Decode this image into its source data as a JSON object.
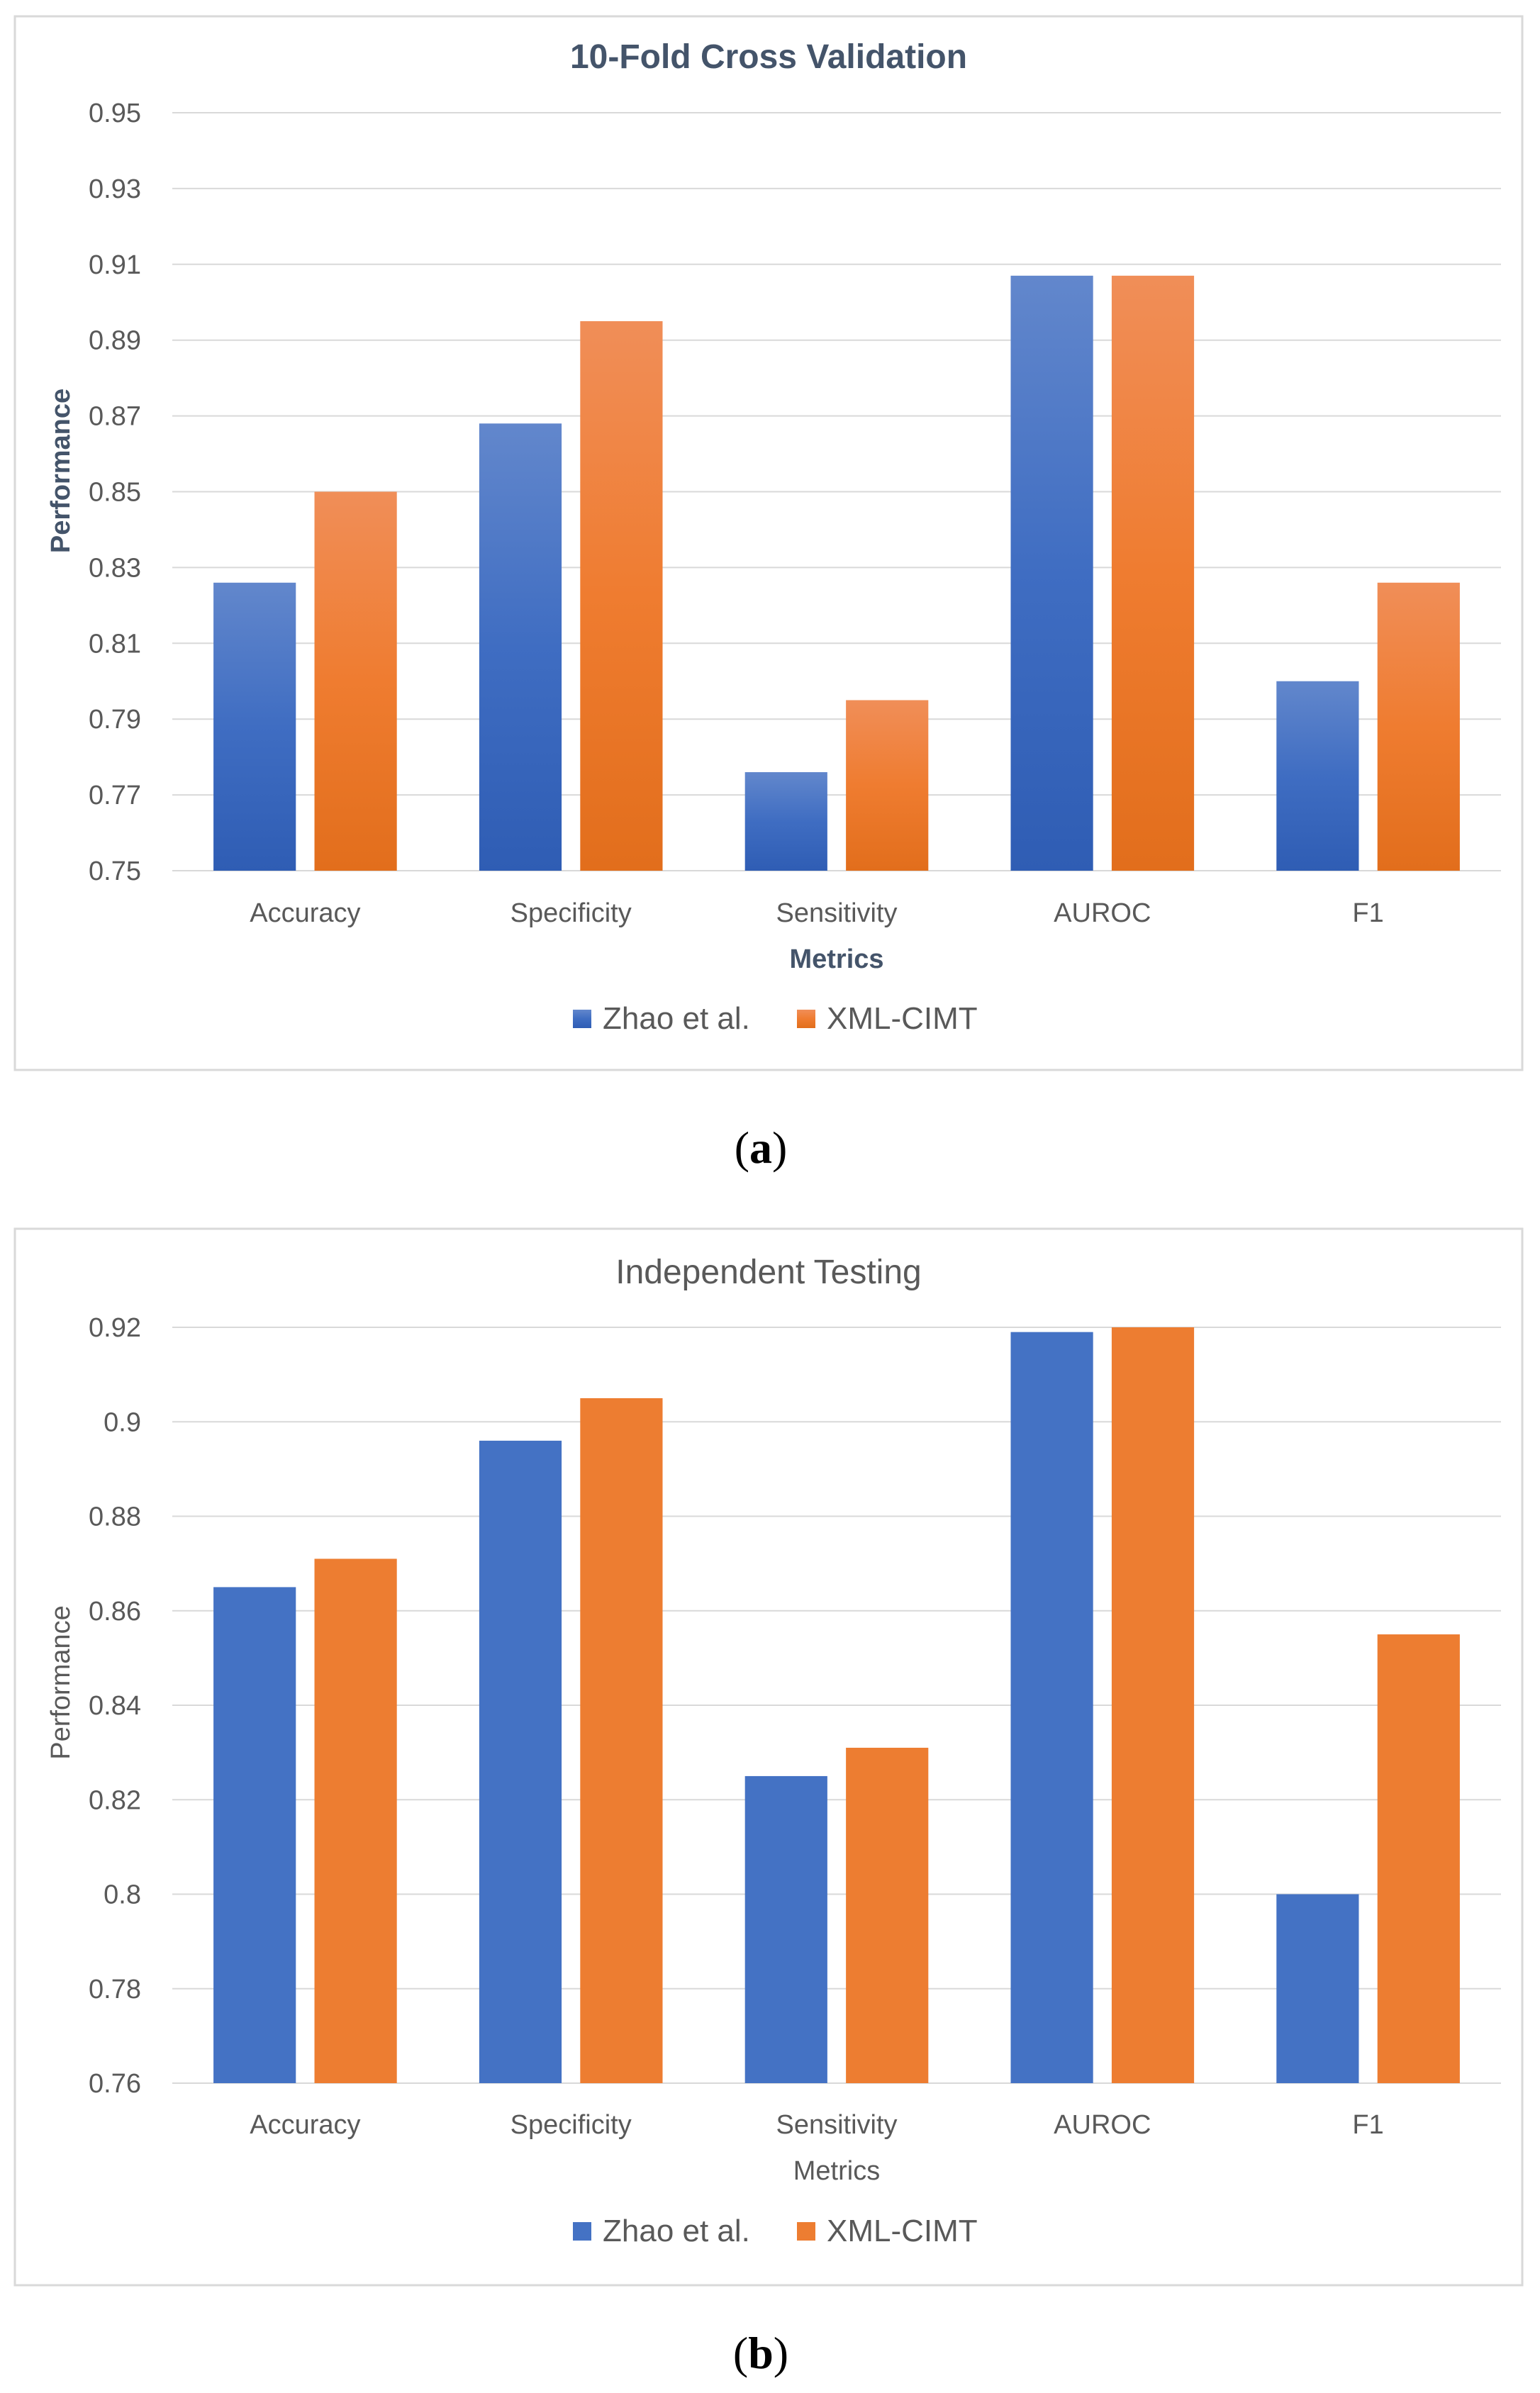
{
  "chart_data": [
    {
      "type": "bar",
      "title": "10-Fold Cross Validation",
      "xlabel": "Metrics",
      "ylabel": "Performance",
      "ylim": [
        0.75,
        0.95
      ],
      "yticks": [
        "0.95",
        "0.93",
        "0.91",
        "0.89",
        "0.87",
        "0.85",
        "0.83",
        "0.81",
        "0.79",
        "0.77",
        "0.75"
      ],
      "categories": [
        "Accuracy",
        "Specificity",
        "Sensitivity",
        "AUROC",
        "F1"
      ],
      "series": [
        {
          "name": "Zhao et al.",
          "color": "#4472C4",
          "values": [
            0.826,
            0.868,
            0.776,
            0.907,
            0.8
          ]
        },
        {
          "name": "XML-CIMT",
          "color": "#ED7D31",
          "values": [
            0.85,
            0.895,
            0.795,
            0.907,
            0.826
          ]
        }
      ],
      "grid": true,
      "legend": "bottom",
      "caption_letter": "a"
    },
    {
      "type": "bar",
      "title": "Independent Testing",
      "xlabel": "Metrics",
      "ylabel": "Performance",
      "ylim": [
        0.76,
        0.92
      ],
      "yticks": [
        "0.92",
        "0.9",
        "0.88",
        "0.86",
        "0.84",
        "0.82",
        "0.8",
        "0.78",
        "0.76"
      ],
      "categories": [
        "Accuracy",
        "Specificity",
        "Sensitivity",
        "AUROC",
        "F1"
      ],
      "series": [
        {
          "name": "Zhao et al.",
          "color": "#4472C4",
          "values": [
            0.865,
            0.896,
            0.825,
            0.919,
            0.8
          ]
        },
        {
          "name": "XML-CIMT",
          "color": "#ED7D31",
          "values": [
            0.871,
            0.905,
            0.831,
            0.92,
            0.855
          ]
        }
      ],
      "grid": true,
      "legend": "bottom",
      "caption_letter": "b"
    }
  ]
}
